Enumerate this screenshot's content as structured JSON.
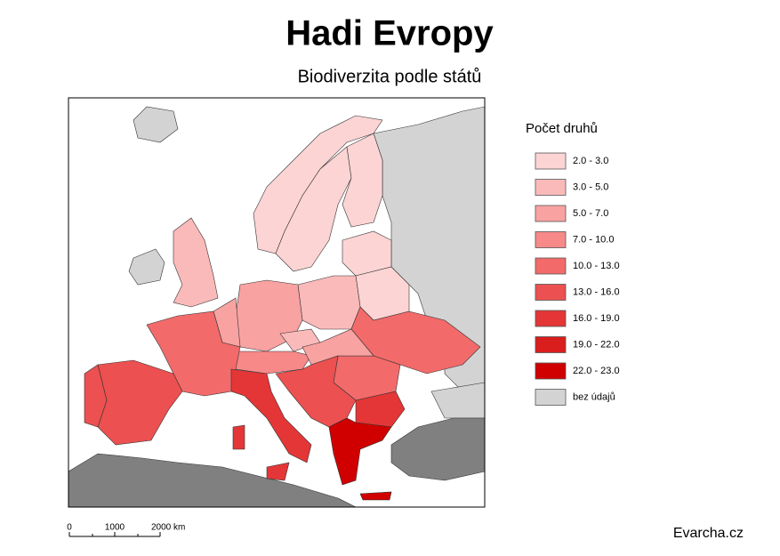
{
  "header": {
    "title": "Hadi Evropy",
    "subtitle": "Biodiverzita podle států"
  },
  "legend": {
    "title": "Počet druhů",
    "items": [
      {
        "label": "2.0 - 3.0",
        "color": "#fcd4d4"
      },
      {
        "label": "3.0 - 5.0",
        "color": "#fbbaba"
      },
      {
        "label": "5.0 - 7.0",
        "color": "#f9a2a2"
      },
      {
        "label": "7.0 - 10.0",
        "color": "#f78989"
      },
      {
        "label": "10.0 - 13.0",
        "color": "#f26a6a"
      },
      {
        "label": "13.0 - 16.0",
        "color": "#ec5050"
      },
      {
        "label": "16.0 - 19.0",
        "color": "#e43636"
      },
      {
        "label": "19.0 - 22.0",
        "color": "#da1d1d"
      },
      {
        "label": "22.0 - 23.0",
        "color": "#d00000"
      },
      {
        "label": "bez údajů",
        "color": "#d3d3d3"
      }
    ]
  },
  "scale_bar": {
    "labels": [
      "0",
      "1000",
      "2000 km"
    ]
  },
  "credit": "Evarcha.cz"
}
